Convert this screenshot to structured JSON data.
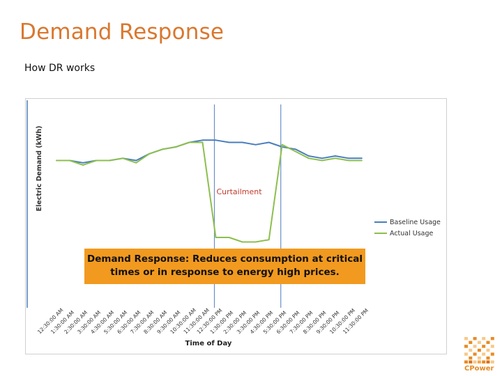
{
  "slide": {
    "title": "Demand Response",
    "subtitle": "How DR works",
    "callout": "Demand Response: Reduces consumption at critical times or in response to energy high prices.",
    "logo_text": "CPower"
  },
  "colors": {
    "title": "#d9782f",
    "baseline": "#4a7ebb",
    "actual": "#8cbf4e",
    "curtailment_label": "#c0392b",
    "callout_bg": "#f29a1f"
  },
  "chart_data": {
    "type": "line",
    "title": "",
    "xlabel": "Time of Day",
    "ylabel": "Electric Demand (kWh)",
    "x": [
      "12:30:00 AM",
      "1:30:00 AM",
      "2:30:00 AM",
      "3:30:00 AM",
      "4:30:00 AM",
      "5:30:00 AM",
      "6:30:00 AM",
      "7:30:00 AM",
      "8:30:00 AM",
      "9:30:00 AM",
      "10:30:00 AM",
      "11:30:00 AM",
      "12:30:00 PM",
      "1:30:00 PM",
      "2:30:00 PM",
      "3:30:00 PM",
      "4:30:00 PM",
      "5:30:00 PM",
      "6:30:00 PM",
      "7:30:00 PM",
      "8:30:00 PM",
      "9:30:00 PM",
      "10:30:00 PM",
      "11:30:00 PM"
    ],
    "series": [
      {
        "name": "Baseline Usage",
        "values": [
          62,
          62,
          61,
          62,
          62,
          63,
          62,
          65,
          67,
          68,
          70,
          71,
          71,
          70,
          70,
          69,
          70,
          68,
          67,
          64,
          63,
          64,
          63,
          63
        ]
      },
      {
        "name": "Actual Usage",
        "values": [
          62,
          62,
          60,
          62,
          62,
          63,
          61,
          65,
          67,
          68,
          70,
          70,
          28,
          28,
          26,
          26,
          27,
          69,
          66,
          63,
          62,
          63,
          62,
          62
        ]
      }
    ],
    "annotations": [
      {
        "text": "Curtailment",
        "category_start": "12:30:00 PM",
        "category_end": "5:30:00 PM"
      }
    ],
    "legend": "right",
    "grid": false
  }
}
